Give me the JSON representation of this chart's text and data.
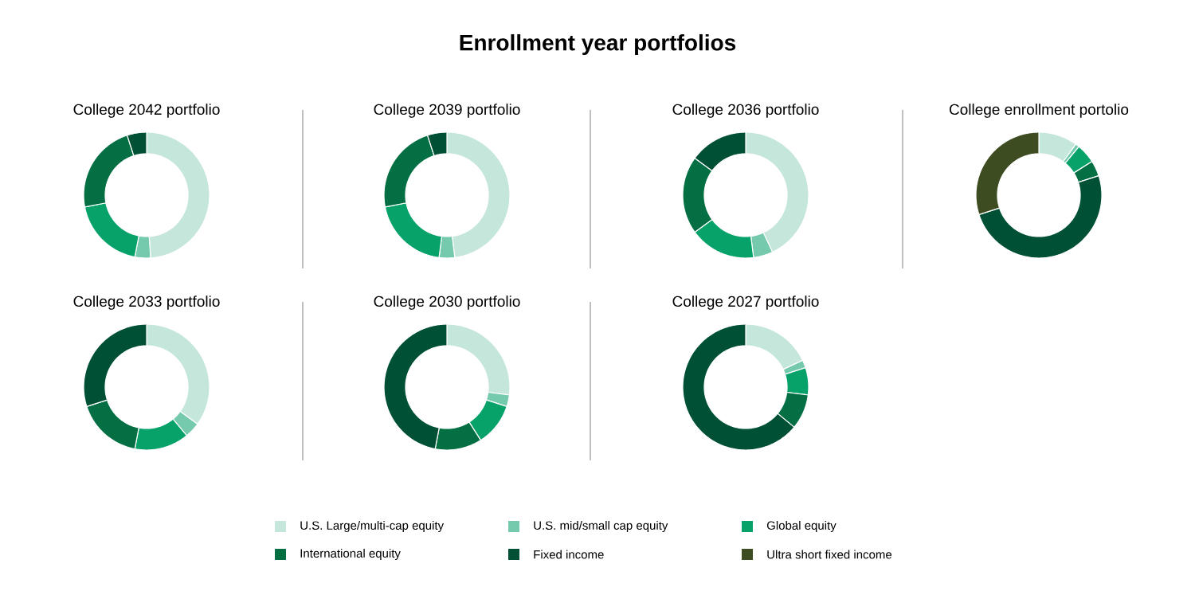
{
  "chart_data": [
    {
      "type": "other",
      "title": "Enrollment year portfolios"
    },
    {
      "type": "donut",
      "title": "College 2042 portfolio",
      "values": [
        49,
        4,
        19,
        23,
        5
      ],
      "colors": [
        "#c5e6da",
        "#75c9ad",
        "#07a26a",
        "#036f43",
        "#005035"
      ]
    },
    {
      "type": "donut",
      "title": "College 2039 portfolio",
      "values": [
        48,
        4,
        20,
        23,
        5
      ],
      "colors": [
        "#c5e6da",
        "#75c9ad",
        "#07a26a",
        "#036f43",
        "#005035"
      ]
    },
    {
      "type": "donut",
      "title": "College 2036 portfolio",
      "values": [
        43,
        5,
        17,
        20,
        15
      ],
      "colors": [
        "#c5e6da",
        "#75c9ad",
        "#07a26a",
        "#036f43",
        "#005035"
      ]
    },
    {
      "type": "donut",
      "title": "College enrollment portolio",
      "categories": [
        "U.S. Large/multi-cap equity",
        "U.S. mid/small cap equity",
        "Global equity",
        "International equity",
        "Fixed income",
        "Ultra short fixed income"
      ],
      "values": [
        10,
        1,
        5,
        4,
        50,
        30
      ],
      "colors": [
        "#c5e6da",
        "#75c9ad",
        "#07a26a",
        "#036f43",
        "#005035",
        "#3d4d21"
      ],
      "legend": "bottom"
    },
    {
      "type": "donut",
      "title": "College 2033 portfolio",
      "values": [
        35,
        4,
        14,
        17,
        30
      ],
      "colors": [
        "#c5e6da",
        "#75c9ad",
        "#07a26a",
        "#036f43",
        "#005035"
      ]
    },
    {
      "type": "donut",
      "title": "College 2030 portfolio",
      "values": [
        27,
        3,
        11,
        12,
        47
      ],
      "colors": [
        "#c5e6da",
        "#75c9ad",
        "#07a26a",
        "#036f43",
        "#005035"
      ]
    },
    {
      "type": "donut",
      "title": "College 2027 portfolio",
      "values": [
        18,
        2,
        7,
        9,
        64
      ],
      "colors": [
        "#c5e6da",
        "#75c9ad",
        "#07a26a",
        "#036f43",
        "#005035"
      ]
    }
  ]
}
